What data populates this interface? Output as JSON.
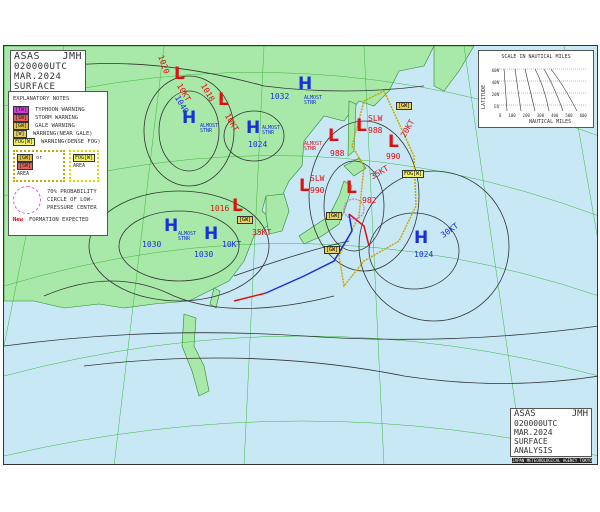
{
  "header": {
    "agency": "ASAS",
    "station": "JMH",
    "datetime": "020000UTC MAR.2024",
    "type": "SURFACE ANALYSIS"
  },
  "footer": {
    "agency": "ASAS",
    "station": "JMH",
    "datetime": "020000UTC MAR.2024",
    "type": "SURFACE ANALYSIS",
    "issuer": "JAPAN METEOROLOGICAL AGENCY TOKYO"
  },
  "notes": {
    "title": "EXPLANATORY NOTES",
    "items": [
      {
        "code": "[TW]",
        "label": "TYPHOON WARNING",
        "color": "#d040d0"
      },
      {
        "code": "[SW]",
        "label": "STORM WARNING",
        "color": "#e06060"
      },
      {
        "code": "[GW]",
        "label": "GALE WARNING",
        "color": "#e0c040"
      },
      {
        "code": "[W]",
        "label": "WARNING(NEAR GALE)",
        "color": "#e0d060"
      },
      {
        "code": "FOG[W]",
        "label": "WARNING(DENSE FOG)",
        "color": "#f0f060"
      }
    ],
    "area_gw": "[GW]",
    "area_or": "or",
    "area_sw": "[SW]",
    "area_label": "AREA",
    "area_fog": "FOG[W]",
    "area_fog_label": "AREA",
    "circle_label": "70% PROBABILITY CIRCLE OF LOW-PRESSURE CENTER",
    "new_label": "New",
    "new_desc": "FORMATION EXPECTED"
  },
  "scale": {
    "title": "SCALE IN NAUTICAL MILES",
    "ylabel": "LATITUDE",
    "xlabel": "NAUTICAL MILES",
    "lat_ticks": [
      "EQ",
      "20N",
      "40N",
      "60N"
    ],
    "nm_ticks": [
      "0",
      "100",
      "200",
      "300",
      "400",
      "500",
      "600"
    ]
  },
  "systems": {
    "highs": [
      {
        "letter": "H",
        "pressure": "1040",
        "note": "ALMOST STNR"
      },
      {
        "letter": "H",
        "pressure": "1024",
        "note": "ALMOST STNR"
      },
      {
        "letter": "H",
        "pressure": "1032",
        "note": "ALMOST STNR"
      },
      {
        "letter": "H",
        "pressure": "1030",
        "note": "ALMOST STNR"
      },
      {
        "letter": "H",
        "pressure": "1030",
        "motion": "10KT"
      },
      {
        "letter": "H",
        "pressure": "1024",
        "motion": "30KT"
      }
    ],
    "lows": [
      {
        "letter": "L",
        "pressure": "1020",
        "motion": "10KT"
      },
      {
        "letter": "L",
        "pressure": "1018",
        "motion": "10KT"
      },
      {
        "letter": "L",
        "pressure": "988",
        "motion": "SLW"
      },
      {
        "letter": "L",
        "pressure": "988",
        "note": "ALMOST STNR"
      },
      {
        "letter": "L",
        "pressure": "990",
        "motion": "20KT"
      },
      {
        "letter": "L",
        "pressure": "990",
        "motion": "SLW"
      },
      {
        "letter": "L",
        "pressure": "982",
        "motion": "35KT"
      },
      {
        "letter": "L",
        "pressure": "1016",
        "motion": "35KT"
      }
    ],
    "warnings": [
      "[GW]",
      "[GW]",
      "FOG[W]",
      "[GW]",
      "[GW]"
    ]
  },
  "colors": {
    "sea": "#c8e8f6",
    "land": "#a8e8a8",
    "high": "#1a2ee0",
    "low": "#e01010",
    "cold_front": "#1a2ee0",
    "warm_front": "#e01010",
    "fog_area": "#c8a800"
  }
}
